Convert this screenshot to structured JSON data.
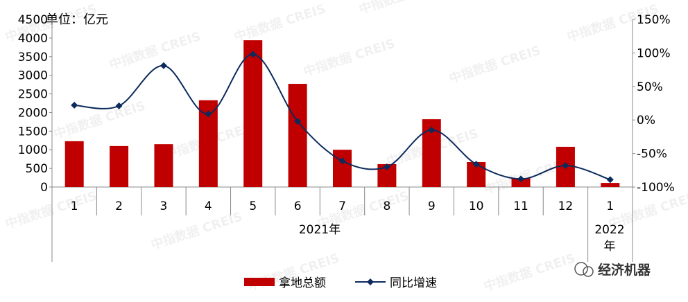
{
  "chart_data": {
    "type": "bar+line",
    "unit_label": "单位：亿元",
    "categories": [
      "1",
      "2",
      "3",
      "4",
      "5",
      "6",
      "7",
      "8",
      "9",
      "10",
      "11",
      "12",
      "1"
    ],
    "year_groups": [
      {
        "label": "2021年",
        "count": 12
      },
      {
        "label": "2022年",
        "count": 1
      }
    ],
    "y_left": {
      "min": 0,
      "max": 4500,
      "step": 500,
      "ticks": [
        "0",
        "500",
        "1000",
        "1500",
        "2000",
        "2500",
        "3000",
        "3500",
        "4000",
        "4500"
      ]
    },
    "y_right": {
      "min": -100,
      "max": 150,
      "step": 50,
      "ticks": [
        "-100%",
        "-50%",
        "0%",
        "50%",
        "100%",
        "150%"
      ]
    },
    "series": [
      {
        "name": "拿地总额",
        "type": "bar",
        "axis": "left",
        "color": "#C00000",
        "values": [
          1230,
          1100,
          1150,
          2330,
          3940,
          2770,
          1000,
          615,
          1820,
          670,
          240,
          1080,
          110
        ]
      },
      {
        "name": "同比增速",
        "type": "line",
        "axis": "right",
        "color": "#0C2A5C",
        "marker": "diamond",
        "values": [
          22,
          21,
          81,
          9,
          98,
          -2,
          -61,
          -70,
          -15,
          -66,
          -88,
          -68,
          -89
        ]
      }
    ],
    "grid": false,
    "legend_position": "bottom"
  },
  "watermark": "中指数据 CREIS",
  "logo_text": "经济机器"
}
